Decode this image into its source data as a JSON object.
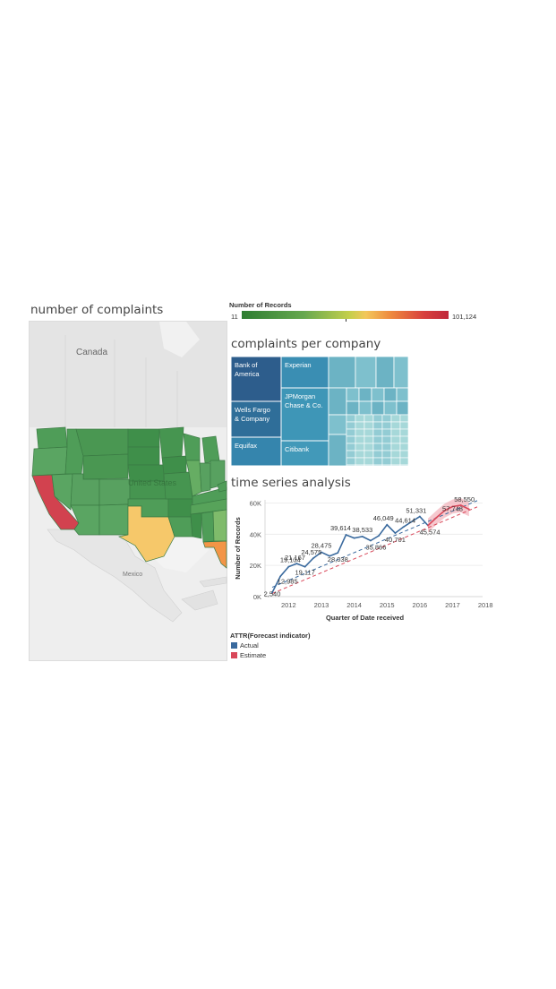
{
  "titles": {
    "map": "number of complaints",
    "treemap": "complaints per company",
    "timeseries": "time series analysis"
  },
  "map": {
    "labels": {
      "canada": "Canada",
      "united_states": "United States",
      "mexico": "Mexico"
    },
    "colors": {
      "water_land_bg": "#eeeeee",
      "green_dark": "#3f8f4a",
      "green_mid": "#57a35a",
      "green_light": "#7fbb6b",
      "california": "#d2424f",
      "texas": "#f6c86a",
      "florida": "#f39547"
    }
  },
  "color_legend": {
    "title": "Number of Records",
    "min_label": "11",
    "max_label": "101,124",
    "min": 11,
    "max": 101124
  },
  "treemap": {
    "companies": [
      {
        "name": "Bank of America",
        "color": "#2d5d8c"
      },
      {
        "name": "Wells Fargo & Company",
        "color": "#2f6e99"
      },
      {
        "name": "Equifax",
        "color": "#3585ad"
      },
      {
        "name": "Experian",
        "color": "#3a8eb3"
      },
      {
        "name": "JPMorgan Chase & Co.",
        "color": "#3e96b7"
      },
      {
        "name": "Citibank",
        "color": "#4299b9"
      }
    ],
    "other_colors": [
      "#6cb3c4",
      "#7ec0cd",
      "#93ccd4",
      "#a6d8d9"
    ]
  },
  "forecast_legend": {
    "title": "ATTR(Forecast indicator)",
    "items": [
      {
        "label": "Actual",
        "color": "#3a6a9e"
      },
      {
        "label": "Estimate",
        "color": "#d9485a"
      }
    ]
  },
  "chart_data": {
    "type": "line",
    "title": "time series analysis",
    "xlabel": "Quarter of Date received",
    "ylabel": "Number of Records",
    "x_ticks": [
      "2012",
      "2013",
      "2014",
      "2015",
      "2016",
      "2017",
      "2018"
    ],
    "y_ticks": [
      "0K",
      "20K",
      "40K",
      "60K"
    ],
    "ylim": [
      0,
      62000
    ],
    "grid": true,
    "series": [
      {
        "name": "Actual",
        "color": "#3a6a9e",
        "points": [
          {
            "x": "2011 Q4",
            "y": 2540
          },
          {
            "x": "2012 Q1",
            "y": 12985
          },
          {
            "x": "2012 Q2",
            "y": 19134
          },
          {
            "x": "2012 Q3",
            "y": 21167
          },
          {
            "x": "2012 Q4",
            "y": 19117
          },
          {
            "x": "2013 Q1",
            "y": 24575
          },
          {
            "x": "2013 Q2",
            "y": 28475
          },
          {
            "x": "2013 Q3",
            "y": 26000
          },
          {
            "x": "2013 Q4",
            "y": 28038
          },
          {
            "x": "2014 Q1",
            "y": 39614
          },
          {
            "x": "2014 Q2",
            "y": 37500
          },
          {
            "x": "2014 Q3",
            "y": 38533
          },
          {
            "x": "2014 Q4",
            "y": 35866
          },
          {
            "x": "2015 Q1",
            "y": 39000
          },
          {
            "x": "2015 Q2",
            "y": 46049
          },
          {
            "x": "2015 Q3",
            "y": 40701
          },
          {
            "x": "2015 Q4",
            "y": 44614
          },
          {
            "x": "2016 Q1",
            "y": 48000
          },
          {
            "x": "2016 Q2",
            "y": 51331
          },
          {
            "x": "2016 Q3",
            "y": 45574
          }
        ]
      },
      {
        "name": "Estimate",
        "color": "#d9485a",
        "points": [
          {
            "x": "2016 Q3",
            "y": 45574
          },
          {
            "x": "2016 Q4",
            "y": 50500
          },
          {
            "x": "2017 Q1",
            "y": 55000
          },
          {
            "x": "2017 Q2",
            "y": 57748
          },
          {
            "x": "2017 Q3",
            "y": 58550
          },
          {
            "x": "2017 Q4",
            "y": 56000
          }
        ]
      }
    ],
    "data_labels": [
      {
        "x": "2011 Q4",
        "text": "2,540"
      },
      {
        "x": "2012 Q1",
        "text": "12,985"
      },
      {
        "x": "2012 Q2",
        "text": "19,134"
      },
      {
        "x": "2012 Q3",
        "text": "21,167"
      },
      {
        "x": "2012 Q4",
        "text": "19,117"
      },
      {
        "x": "2013 Q1",
        "text": "24,575"
      },
      {
        "x": "2013 Q2",
        "text": "28,475"
      },
      {
        "x": "2013 Q4",
        "text": "28,038"
      },
      {
        "x": "2014 Q1",
        "text": "39,614"
      },
      {
        "x": "2014 Q3",
        "text": "38,533"
      },
      {
        "x": "2014 Q4",
        "text": "35,866"
      },
      {
        "x": "2015 Q2",
        "text": "46,049"
      },
      {
        "x": "2015 Q3",
        "text": "40,701"
      },
      {
        "x": "2015 Q4",
        "text": "44,614"
      },
      {
        "x": "2016 Q2",
        "text": "51,331"
      },
      {
        "x": "2016 Q3",
        "text": "45,574"
      },
      {
        "x": "2017 Q2",
        "text": "57,748"
      },
      {
        "x": "2017 Q3",
        "text": "58,550"
      }
    ],
    "trend_lines": [
      {
        "name": "Actual",
        "color": "#3a6a9e",
        "style": "dashed"
      },
      {
        "name": "Estimate",
        "color": "#d9485a",
        "style": "dashed"
      }
    ]
  }
}
